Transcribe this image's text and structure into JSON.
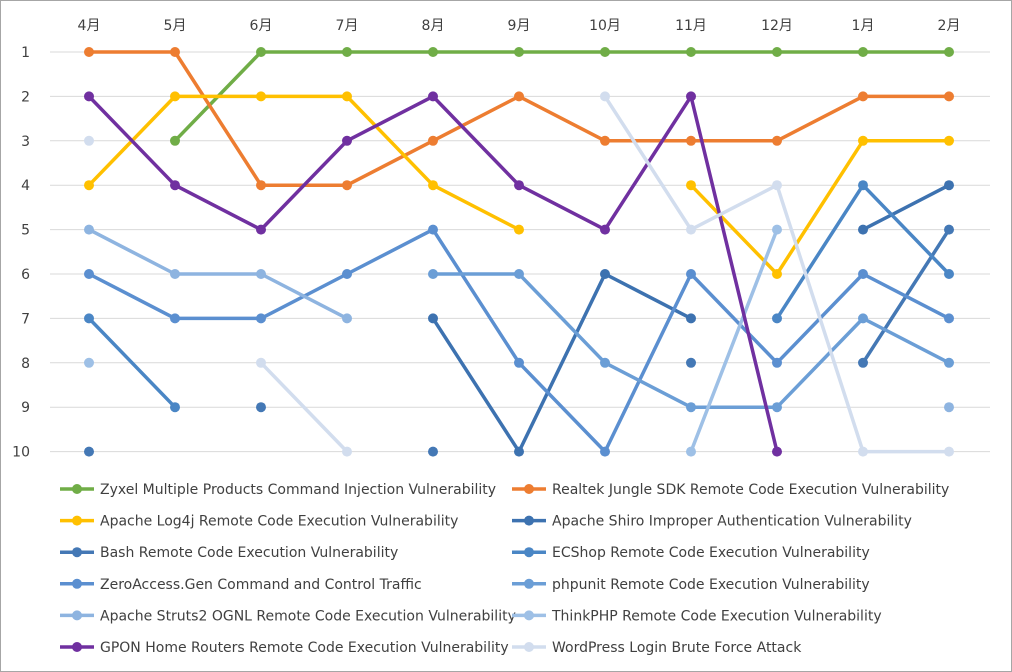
{
  "chart_data": {
    "type": "line",
    "y_inverted": true,
    "ylim": [
      1,
      10
    ],
    "grid": true,
    "legend_position": "bottom",
    "categories": [
      "4月",
      "5月",
      "6月",
      "7月",
      "8月",
      "9月",
      "10月",
      "11月",
      "12月",
      "1月",
      "2月"
    ],
    "y_ticks": [
      "1",
      "2",
      "3",
      "4",
      "5",
      "6",
      "7",
      "8",
      "9",
      "10"
    ],
    "series": [
      {
        "name": "Zyxel Multiple Products Command Injection Vulnerability",
        "color": "#70ad47",
        "values": [
          null,
          3,
          1,
          1,
          1,
          1,
          1,
          1,
          1,
          1,
          1
        ]
      },
      {
        "name": "Realtek Jungle SDK Remote Code Execution Vulnerability",
        "color": "#ed7d31",
        "values": [
          1,
          1,
          4,
          4,
          3,
          2,
          3,
          3,
          3,
          2,
          2
        ]
      },
      {
        "name": "Apache Log4j Remote Code Execution Vulnerability",
        "color": "#ffc000",
        "values": [
          4,
          2,
          2,
          2,
          4,
          5,
          null,
          4,
          6,
          3,
          3
        ]
      },
      {
        "name": "Apache Shiro Improper Authentication Vulnerability",
        "color": "#3d72b0",
        "values": [
          null,
          null,
          null,
          null,
          7,
          10,
          6,
          7,
          null,
          5,
          4
        ]
      },
      {
        "name": "Bash Remote Code Execution Vulnerability",
        "color": "#4478b5",
        "values": [
          10,
          null,
          9,
          null,
          10,
          null,
          null,
          8,
          null,
          8,
          5
        ]
      },
      {
        "name": "ECShop Remote Code Execution Vulnerability",
        "color": "#4a86c5",
        "values": [
          7,
          9,
          null,
          null,
          null,
          null,
          null,
          null,
          7,
          4,
          6
        ]
      },
      {
        "name": "ZeroAccess.Gen Command and Control Traffic",
        "color": "#5b8fd0",
        "values": [
          6,
          7,
          7,
          6,
          5,
          8,
          10,
          6,
          8,
          6,
          7
        ]
      },
      {
        "name": "phpunit Remote Code Execution Vulnerability",
        "color": "#6b9ed6",
        "values": [
          null,
          null,
          null,
          null,
          6,
          6,
          8,
          9,
          9,
          7,
          8
        ]
      },
      {
        "name": "Apache Struts2 OGNL Remote Code Execution Vulnerability",
        "color": "#8eb4e0",
        "values": [
          5,
          6,
          6,
          7,
          null,
          null,
          null,
          null,
          null,
          null,
          9
        ]
      },
      {
        "name": "ThinkPHP Remote Code Execution Vulnerability",
        "color": "#9ec0e6",
        "values": [
          8,
          null,
          null,
          null,
          null,
          null,
          null,
          10,
          5,
          null,
          null
        ]
      },
      {
        "name": "GPON Home Routers Remote Code Execution Vulnerability",
        "color": "#7030a0",
        "values": [
          2,
          4,
          5,
          3,
          2,
          4,
          5,
          2,
          10,
          null,
          null
        ]
      },
      {
        "name": "WordPress Login Brute Force Attack",
        "color": "#d2ddee",
        "values": [
          3,
          null,
          8,
          10,
          null,
          null,
          2,
          5,
          4,
          10,
          10
        ]
      }
    ]
  }
}
